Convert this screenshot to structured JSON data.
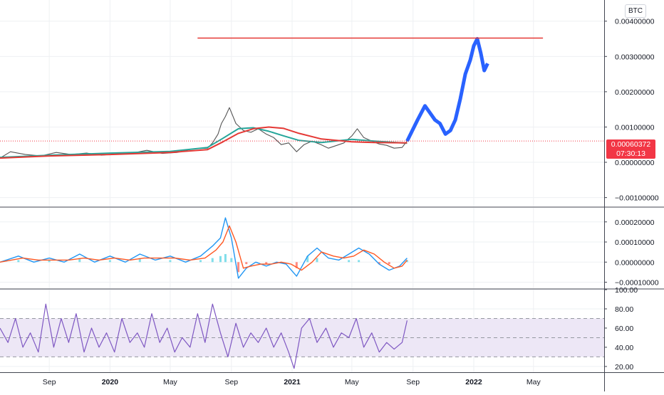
{
  "currency_badge": "BTC",
  "price_label": {
    "value": "0.00060372",
    "countdown": "07:30:13",
    "color": "#f23645"
  },
  "colors": {
    "price": "#555555",
    "projection": "#2962ff",
    "resistance": "#e53935",
    "ma_fast": "#26a69a",
    "ma_slow": "#e53935",
    "macd": "#2196f3",
    "signal": "#ff5722",
    "hist_pos": "#80deea",
    "hist_neg": "#ff8a80",
    "rsi": "#7e57c2",
    "rsi_band": "#ede7f6"
  },
  "chart_data": [
    {
      "type": "line",
      "panel": "price",
      "y_ticks": [
        "0.00400000",
        "0.00300000",
        "0.00200000",
        "0.00100000",
        "0.00000000",
        "−0.00100000"
      ],
      "y_tick_values": [
        0.004,
        0.003,
        0.002,
        0.001,
        0.0,
        -0.001
      ],
      "ylim": [
        -0.00125,
        0.0046
      ],
      "x_ticks": [
        "Sep",
        "2020",
        "May",
        "Sep",
        "2021",
        "May",
        "Sep",
        "2022",
        "May"
      ],
      "x_ticks_bold": [
        "2020",
        "2021",
        "2022"
      ],
      "x_tick_dates": [
        "2019-09-01",
        "2020-01-01",
        "2020-05-01",
        "2020-09-01",
        "2021-01-01",
        "2021-05-01",
        "2021-09-01",
        "2022-01-01",
        "2022-05-01"
      ],
      "xlim": [
        "2019-05-25",
        "2022-09-20"
      ],
      "series": [
        {
          "name": "",
          "style": "price",
          "x": [
            "2019-05-25",
            "2019-06-15",
            "2019-07-15",
            "2019-08-15",
            "2019-09-15",
            "2019-10-15",
            "2019-11-15",
            "2019-12-15",
            "2020-01-15",
            "2020-02-15",
            "2020-03-15",
            "2020-04-15",
            "2020-05-15",
            "2020-06-15",
            "2020-07-15",
            "2020-07-25",
            "2020-08-05",
            "2020-08-12",
            "2020-08-20",
            "2020-08-28",
            "2020-09-10",
            "2020-09-25",
            "2020-10-10",
            "2020-10-25",
            "2020-11-10",
            "2020-11-25",
            "2020-12-10",
            "2020-12-25",
            "2021-01-10",
            "2021-01-25",
            "2021-02-10",
            "2021-02-25",
            "2021-03-15",
            "2021-04-01",
            "2021-04-15",
            "2021-05-01",
            "2021-05-12",
            "2021-05-25",
            "2021-06-10",
            "2021-06-25",
            "2021-07-10",
            "2021-07-25",
            "2021-08-10",
            "2021-08-20"
          ],
          "y": [
            0.00012,
            0.0003,
            0.00022,
            0.00018,
            0.00028,
            0.00022,
            0.00026,
            0.0002,
            0.00024,
            0.00026,
            0.00034,
            0.00025,
            0.00028,
            0.00038,
            0.0004,
            0.00055,
            0.0008,
            0.0011,
            0.0013,
            0.00155,
            0.0011,
            0.0009,
            0.00085,
            0.00095,
            0.0008,
            0.0007,
            0.0005,
            0.00055,
            0.0003,
            0.0005,
            0.0006,
            0.00052,
            0.0004,
            0.00048,
            0.00055,
            0.00075,
            0.00095,
            0.0007,
            0.0006,
            0.00052,
            0.00048,
            0.0004,
            0.00042,
            0.00060372
          ]
        },
        {
          "name": "",
          "style": "ma_fast",
          "x": [
            "2019-05-25",
            "2019-09-01",
            "2020-01-01",
            "2020-05-01",
            "2020-07-15",
            "2020-08-15",
            "2020-09-15",
            "2020-10-15",
            "2020-11-15",
            "2020-12-15",
            "2021-01-15",
            "2021-03-01",
            "2021-05-01",
            "2021-06-15",
            "2021-08-20"
          ],
          "y": [
            0.00014,
            0.0002,
            0.00026,
            0.00031,
            0.00042,
            0.00068,
            0.00095,
            0.00098,
            0.00088,
            0.00075,
            0.00062,
            0.00056,
            0.00065,
            0.0006,
            0.00054
          ]
        },
        {
          "name": "",
          "style": "ma_slow",
          "x": [
            "2019-05-25",
            "2019-09-01",
            "2020-01-01",
            "2020-05-01",
            "2020-07-15",
            "2020-08-15",
            "2020-09-15",
            "2020-10-15",
            "2020-11-15",
            "2020-12-15",
            "2021-01-15",
            "2021-03-01",
            "2021-05-01",
            "2021-06-15",
            "2021-08-20"
          ],
          "y": [
            0.00012,
            0.00018,
            0.00022,
            0.00028,
            0.00036,
            0.00058,
            0.00082,
            0.00095,
            0.001,
            0.00096,
            0.00082,
            0.00066,
            0.00058,
            0.00056,
            0.00055
          ]
        },
        {
          "name": "",
          "style": "projection",
          "x": [
            "2021-08-20",
            "2021-09-10",
            "2021-09-25",
            "2021-10-05",
            "2021-10-15",
            "2021-10-25",
            "2021-11-05",
            "2021-11-15",
            "2021-11-25",
            "2021-12-05",
            "2021-12-15",
            "2021-12-25",
            "2022-01-01",
            "2022-01-08",
            "2022-01-15",
            "2022-01-22",
            "2022-01-29"
          ],
          "y": [
            0.0006,
            0.0012,
            0.0016,
            0.0014,
            0.0012,
            0.0011,
            0.0008,
            0.0009,
            0.0012,
            0.0018,
            0.0025,
            0.0029,
            0.0033,
            0.0035,
            0.0031,
            0.0026,
            0.0028
          ]
        },
        {
          "name": "",
          "style": "resistance",
          "x": [
            "2020-06-25",
            "2022-05-20"
          ],
          "y": [
            0.00352,
            0.00352
          ]
        }
      ]
    },
    {
      "type": "line",
      "panel": "macd",
      "y_ticks": [
        "0.00020000",
        "0.00010000",
        "0.00000000",
        "−0.00010000"
      ],
      "y_tick_values": [
        0.0002,
        0.0001,
        0.0,
        -0.0001
      ],
      "ylim": [
        -0.00013,
        0.00027
      ],
      "series": [
        {
          "name": "",
          "style": "macd",
          "x": [
            "2019-05-25",
            "2019-07-01",
            "2019-08-01",
            "2019-09-01",
            "2019-10-01",
            "2019-11-01",
            "2019-12-01",
            "2020-01-01",
            "2020-02-01",
            "2020-03-01",
            "2020-04-01",
            "2020-05-01",
            "2020-06-01",
            "2020-07-01",
            "2020-07-25",
            "2020-08-10",
            "2020-08-20",
            "2020-09-01",
            "2020-09-15",
            "2020-10-01",
            "2020-10-20",
            "2020-11-10",
            "2020-12-01",
            "2020-12-20",
            "2021-01-10",
            "2021-02-01",
            "2021-02-20",
            "2021-03-15",
            "2021-04-05",
            "2021-04-25",
            "2021-05-15",
            "2021-06-05",
            "2021-06-25",
            "2021-07-15",
            "2021-08-05",
            "2021-08-20"
          ],
          "y": [
            0.0,
            3e-05,
            0.0,
            2e-05,
            0.0,
            4e-05,
            0.0,
            3e-05,
            0.0,
            4e-05,
            1e-05,
            3e-05,
            0.0,
            3e-05,
            8e-05,
            0.00012,
            0.00022,
            0.00012,
            -8e-05,
            -3e-05,
            0.0,
            -2e-05,
            0.0,
            -1e-05,
            -7e-05,
            3e-05,
            7e-05,
            2e-05,
            1e-05,
            4e-05,
            7e-05,
            4e-05,
            -1e-05,
            -4e-05,
            -2e-05,
            2e-05
          ]
        },
        {
          "name": "",
          "style": "signal",
          "x": [
            "2019-05-25",
            "2019-07-10",
            "2019-08-10",
            "2019-09-10",
            "2019-10-10",
            "2019-11-10",
            "2019-12-10",
            "2020-01-10",
            "2020-02-10",
            "2020-03-10",
            "2020-04-10",
            "2020-05-10",
            "2020-06-10",
            "2020-07-10",
            "2020-08-01",
            "2020-08-15",
            "2020-08-28",
            "2020-09-10",
            "2020-09-25",
            "2020-10-10",
            "2020-10-30",
            "2020-11-20",
            "2020-12-10",
            "2020-12-30",
            "2021-01-20",
            "2021-02-10",
            "2021-03-01",
            "2021-03-25",
            "2021-04-15",
            "2021-05-05",
            "2021-05-25",
            "2021-06-15",
            "2021-07-05",
            "2021-07-25",
            "2021-08-10",
            "2021-08-20"
          ],
          "y": [
            0.0,
            2e-05,
            1e-05,
            1e-05,
            1e-05,
            2e-05,
            1e-05,
            2e-05,
            1e-05,
            2e-05,
            2e-05,
            2e-05,
            1e-05,
            2e-05,
            6e-05,
            0.0001,
            0.00018,
            0.0001,
            -3e-05,
            -2e-05,
            -1e-05,
            -1e-05,
            0.0,
            -1e-05,
            -4e-05,
            0.0,
            5e-05,
            3e-05,
            2e-05,
            3e-05,
            6e-05,
            4e-05,
            0.0,
            -3e-05,
            -2e-05,
            1e-05
          ]
        }
      ],
      "histogram": {
        "x": [
          "2019-07-01",
          "2019-09-01",
          "2019-11-01",
          "2020-01-01",
          "2020-03-01",
          "2020-05-01",
          "2020-07-01",
          "2020-07-25",
          "2020-08-10",
          "2020-08-20",
          "2020-09-01",
          "2020-09-15",
          "2020-10-01",
          "2020-11-10",
          "2021-01-10",
          "2021-02-01",
          "2021-02-20",
          "2021-04-25",
          "2021-05-15",
          "2021-06-25",
          "2021-07-15",
          "2021-08-20"
        ],
        "values": [
          1e-05,
          1e-05,
          2e-05,
          1e-05,
          2e-05,
          1e-05,
          1e-05,
          2e-05,
          3e-05,
          4e-05,
          2e-05,
          -5e-05,
          -1e-05,
          -1e-05,
          -3e-05,
          3e-05,
          2e-05,
          1e-05,
          1e-05,
          -1e-05,
          -1e-05,
          1e-05
        ]
      }
    },
    {
      "type": "line",
      "panel": "rsi",
      "y_ticks": [
        "100.00",
        "80.00",
        "60.00",
        "40.00",
        "20.00"
      ],
      "y_tick_values": [
        100,
        80,
        60,
        40,
        20
      ],
      "ylim": [
        14,
        100
      ],
      "band": [
        30,
        70
      ],
      "mid": 50,
      "series": [
        {
          "name": "",
          "style": "rsi",
          "x": [
            "2019-05-25",
            "2019-06-10",
            "2019-06-25",
            "2019-07-10",
            "2019-07-25",
            "2019-08-10",
            "2019-08-25",
            "2019-09-10",
            "2019-09-25",
            "2019-10-10",
            "2019-10-25",
            "2019-11-10",
            "2019-11-25",
            "2019-12-10",
            "2019-12-25",
            "2020-01-10",
            "2020-01-25",
            "2020-02-10",
            "2020-02-25",
            "2020-03-10",
            "2020-03-25",
            "2020-04-10",
            "2020-04-25",
            "2020-05-10",
            "2020-05-25",
            "2020-06-10",
            "2020-06-25",
            "2020-07-10",
            "2020-07-25",
            "2020-08-10",
            "2020-08-25",
            "2020-09-10",
            "2020-09-25",
            "2020-10-10",
            "2020-10-25",
            "2020-11-10",
            "2020-11-25",
            "2020-12-10",
            "2020-12-25",
            "2021-01-05",
            "2021-01-20",
            "2021-02-05",
            "2021-02-20",
            "2021-03-10",
            "2021-03-25",
            "2021-04-10",
            "2021-04-25",
            "2021-05-10",
            "2021-05-25",
            "2021-06-10",
            "2021-06-25",
            "2021-07-10",
            "2021-07-25",
            "2021-08-10",
            "2021-08-20"
          ],
          "y": [
            60,
            45,
            70,
            40,
            55,
            35,
            85,
            40,
            70,
            45,
            75,
            35,
            60,
            40,
            55,
            35,
            70,
            45,
            55,
            40,
            75,
            45,
            60,
            35,
            50,
            40,
            75,
            45,
            85,
            55,
            30,
            65,
            40,
            55,
            45,
            60,
            40,
            55,
            35,
            18,
            60,
            70,
            45,
            60,
            40,
            55,
            50,
            70,
            40,
            55,
            35,
            45,
            38,
            45,
            68
          ]
        }
      ]
    }
  ]
}
